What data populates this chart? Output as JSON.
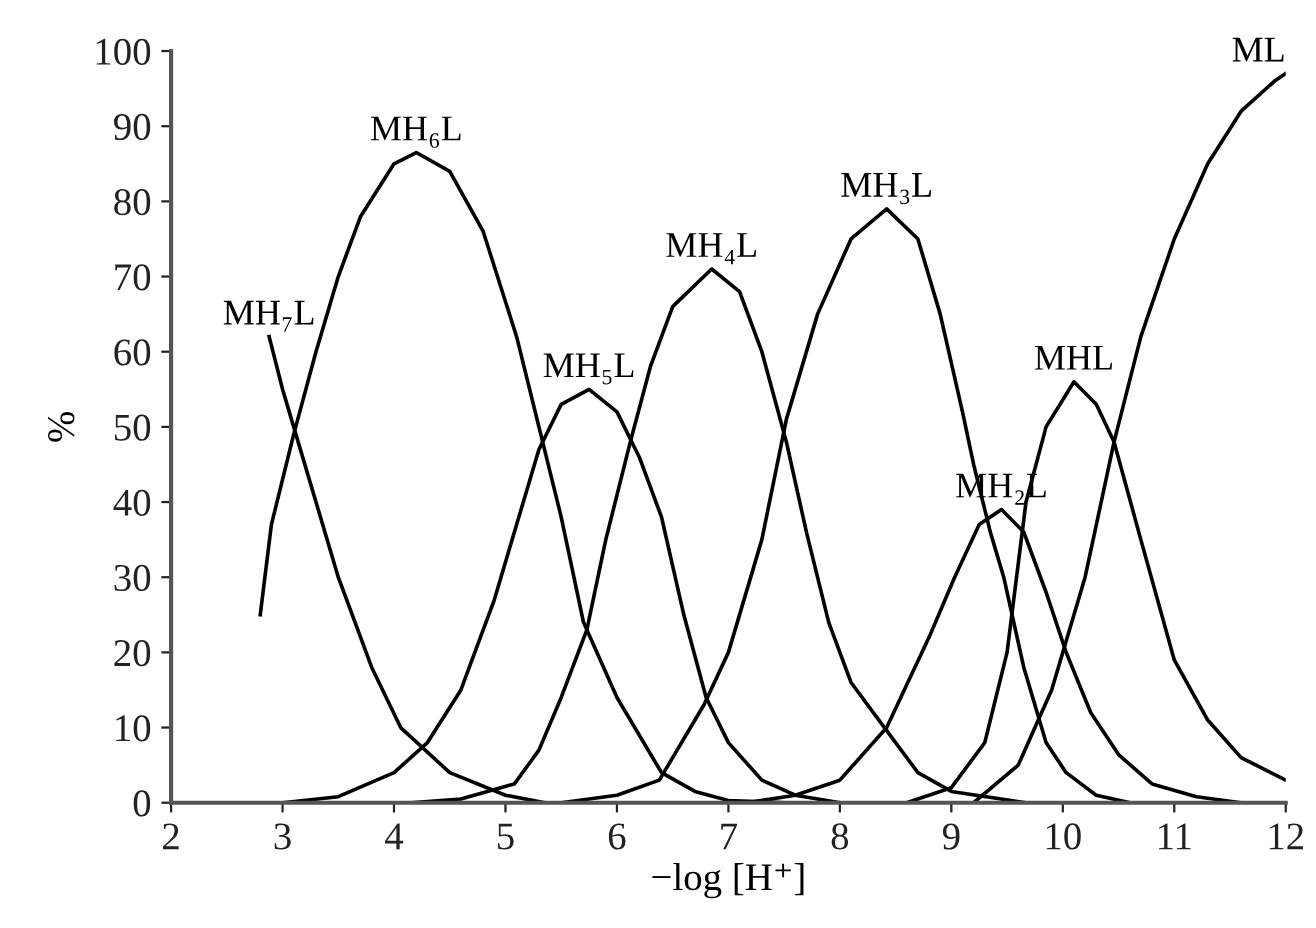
{
  "chart_data": {
    "type": "line",
    "xlabel": "−log [H⁺]",
    "ylabel": "%",
    "xlim": [
      2,
      12
    ],
    "ylim": [
      0,
      100
    ],
    "xticks": [
      2,
      3,
      4,
      5,
      6,
      7,
      8,
      9,
      10,
      11,
      12
    ],
    "yticks": [
      0,
      10,
      20,
      30,
      40,
      50,
      60,
      70,
      80,
      90,
      100
    ],
    "grid": false,
    "legend": false,
    "marker": "none",
    "line_style": "solid",
    "series": [
      {
        "name": "MH₇L",
        "color": "#000000",
        "x": [
          2.88,
          3.0,
          3.1,
          3.3,
          3.5,
          3.8,
          4.06,
          4.5,
          5.0,
          5.35
        ],
        "values": [
          62,
          55,
          50,
          40,
          30,
          18,
          10,
          4,
          1,
          0
        ]
      },
      {
        "name": "MH₆L",
        "color": "#000000",
        "x": [
          2.8,
          2.9,
          3.1,
          3.3,
          3.5,
          3.7,
          4.0,
          4.2,
          4.5,
          4.8,
          5.1,
          5.3,
          5.5,
          5.7,
          6.0,
          6.4,
          6.7,
          7.0,
          7.5
        ],
        "values": [
          25,
          37,
          49,
          60,
          70,
          78,
          85,
          86.5,
          84,
          76,
          62,
          50,
          38,
          24,
          14,
          4,
          1.5,
          0.3,
          0
        ]
      },
      {
        "name": "MH₅L",
        "color": "#000000",
        "x": [
          3.0,
          3.5,
          4.0,
          4.3,
          4.6,
          4.9,
          5.1,
          5.3,
          5.5,
          5.75,
          6.0,
          6.2,
          6.4,
          6.6,
          6.8,
          7.0,
          7.3,
          7.6,
          8.0
        ],
        "values": [
          0,
          0.8,
          4,
          8,
          15,
          27,
          37,
          47,
          53,
          55,
          52,
          46,
          38,
          25,
          14,
          8,
          3,
          1,
          0
        ]
      },
      {
        "name": "MH₄L",
        "color": "#000000",
        "x": [
          4.15,
          4.6,
          5.08,
          5.3,
          5.5,
          5.73,
          5.9,
          6.12,
          6.3,
          6.5,
          6.85,
          7.1,
          7.3,
          7.52,
          7.7,
          7.9,
          8.1,
          8.4,
          8.7,
          9.0,
          9.67
        ],
        "values": [
          0,
          0.5,
          2.5,
          7,
          14,
          23,
          35,
          48,
          58,
          66,
          71,
          68,
          60,
          48,
          36,
          24,
          16,
          10,
          4,
          1.5,
          0
        ]
      },
      {
        "name": "MH₃L",
        "color": "#000000",
        "x": [
          5.5,
          6.0,
          6.38,
          6.78,
          7.0,
          7.3,
          7.52,
          7.8,
          8.1,
          8.42,
          8.7,
          8.9,
          9.1,
          9.2,
          9.35,
          9.47,
          9.65,
          9.85,
          10.03,
          10.3,
          10.6
        ],
        "values": [
          0,
          1,
          3,
          13,
          20,
          35,
          51,
          65,
          75,
          79,
          75,
          65,
          52,
          45,
          36,
          30,
          18,
          8,
          4,
          1,
          0
        ]
      },
      {
        "name": "MH₂L",
        "color": "#000000",
        "x": [
          7.16,
          7.6,
          8.0,
          8.42,
          8.8,
          9.03,
          9.25,
          9.45,
          9.65,
          9.85,
          10.03,
          10.25,
          10.5,
          10.8,
          11.2,
          11.6
        ],
        "values": [
          0,
          1,
          3,
          10,
          22,
          30,
          37,
          39,
          36,
          28,
          20,
          12,
          6.4,
          2.5,
          0.8,
          0
        ]
      },
      {
        "name": "MHL",
        "color": "#000000",
        "x": [
          8.6,
          9.0,
          9.3,
          9.5,
          9.67,
          9.85,
          10.1,
          10.3,
          10.46,
          10.7,
          11.0,
          11.3,
          11.6,
          12.0
        ],
        "values": [
          0,
          2,
          8,
          20,
          40,
          50,
          56,
          53,
          48,
          35,
          19,
          11,
          6,
          3
        ]
      },
      {
        "name": "ML",
        "color": "#000000",
        "x": [
          9.2,
          9.6,
          9.9,
          10.2,
          10.46,
          10.7,
          11.0,
          11.3,
          11.6,
          11.9,
          12.0
        ],
        "values": [
          0,
          5,
          15,
          30,
          48,
          62,
          75,
          85,
          92,
          96,
          97
        ]
      }
    ]
  }
}
